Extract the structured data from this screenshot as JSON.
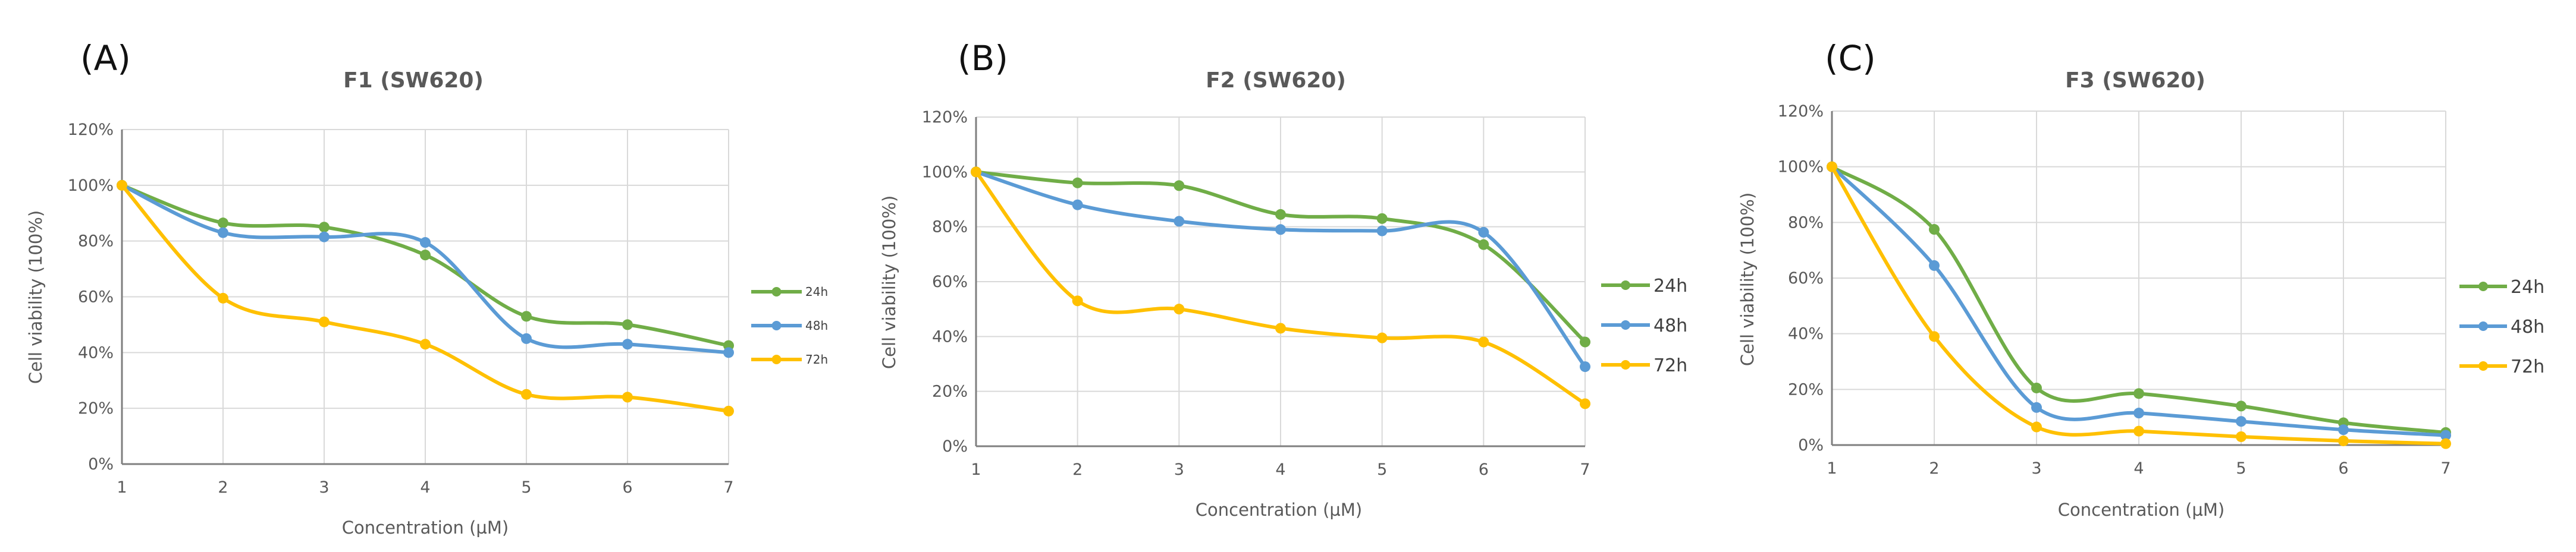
{
  "figure": {
    "panels": [
      "(A)",
      "(B)",
      "(C)"
    ]
  },
  "series_colors": {
    "24h": "#70ad47",
    "48h": "#5b9bd5",
    "72h": "#ffc000"
  },
  "chart_data": [
    {
      "type": "line",
      "panel": "(A)",
      "title": "F1 (SW620)",
      "xlabel": "Concentration (µM)",
      "ylabel": "Cell viability (100%)",
      "categories": [
        1,
        2,
        3,
        4,
        5,
        6,
        7
      ],
      "yticks": [
        "0%",
        "20%",
        "40%",
        "60%",
        "80%",
        "100%",
        "120%"
      ],
      "ylim": [
        0,
        120
      ],
      "grid": true,
      "smooth": true,
      "legend_position": "right",
      "series": [
        {
          "name": "24h",
          "color": "#70ad47",
          "values": [
            100,
            86.5,
            85,
            75,
            53,
            50,
            42.5
          ]
        },
        {
          "name": "48h",
          "color": "#5b9bd5",
          "values": [
            100,
            83,
            81.5,
            79.5,
            45,
            43,
            40
          ]
        },
        {
          "name": "72h",
          "color": "#ffc000",
          "values": [
            100,
            59.5,
            51,
            43,
            25,
            24,
            19
          ]
        }
      ]
    },
    {
      "type": "line",
      "panel": "(B)",
      "title": "F2 (SW620)",
      "xlabel": "Concentration (µM)",
      "ylabel": "Cell viability (100%)",
      "categories": [
        1,
        2,
        3,
        4,
        5,
        6,
        7
      ],
      "yticks": [
        "0%",
        "20%",
        "40%",
        "60%",
        "80%",
        "100%",
        "120%"
      ],
      "ylim": [
        0,
        120
      ],
      "grid": true,
      "smooth": true,
      "legend_position": "right",
      "series": [
        {
          "name": "24h",
          "color": "#70ad47",
          "values": [
            100,
            96,
            95,
            84.5,
            83,
            73.5,
            38
          ]
        },
        {
          "name": "48h",
          "color": "#5b9bd5",
          "values": [
            100,
            88,
            82,
            79,
            78.5,
            78,
            29
          ]
        },
        {
          "name": "72h",
          "color": "#ffc000",
          "values": [
            100,
            53,
            50,
            43,
            39.5,
            38,
            15.5
          ]
        }
      ]
    },
    {
      "type": "line",
      "panel": "(C)",
      "title": "F3 (SW620)",
      "xlabel": "Concentration (µM)",
      "ylabel": "Cell viability (100%)",
      "categories": [
        1,
        2,
        3,
        4,
        5,
        6,
        7
      ],
      "yticks": [
        "0%",
        "20%",
        "40%",
        "60%",
        "80%",
        "100%",
        "120%"
      ],
      "ylim": [
        0,
        120
      ],
      "grid": true,
      "smooth": true,
      "legend_position": "right",
      "series": [
        {
          "name": "24h",
          "color": "#70ad47",
          "values": [
            100,
            77.5,
            20.5,
            18.5,
            14,
            8,
            4.5
          ]
        },
        {
          "name": "48h",
          "color": "#5b9bd5",
          "values": [
            100,
            64.5,
            13.5,
            11.5,
            8.5,
            5.5,
            3.5
          ]
        },
        {
          "name": "72h",
          "color": "#ffc000",
          "values": [
            100,
            39,
            6.5,
            5,
            3,
            1.5,
            0.5
          ]
        }
      ]
    }
  ]
}
